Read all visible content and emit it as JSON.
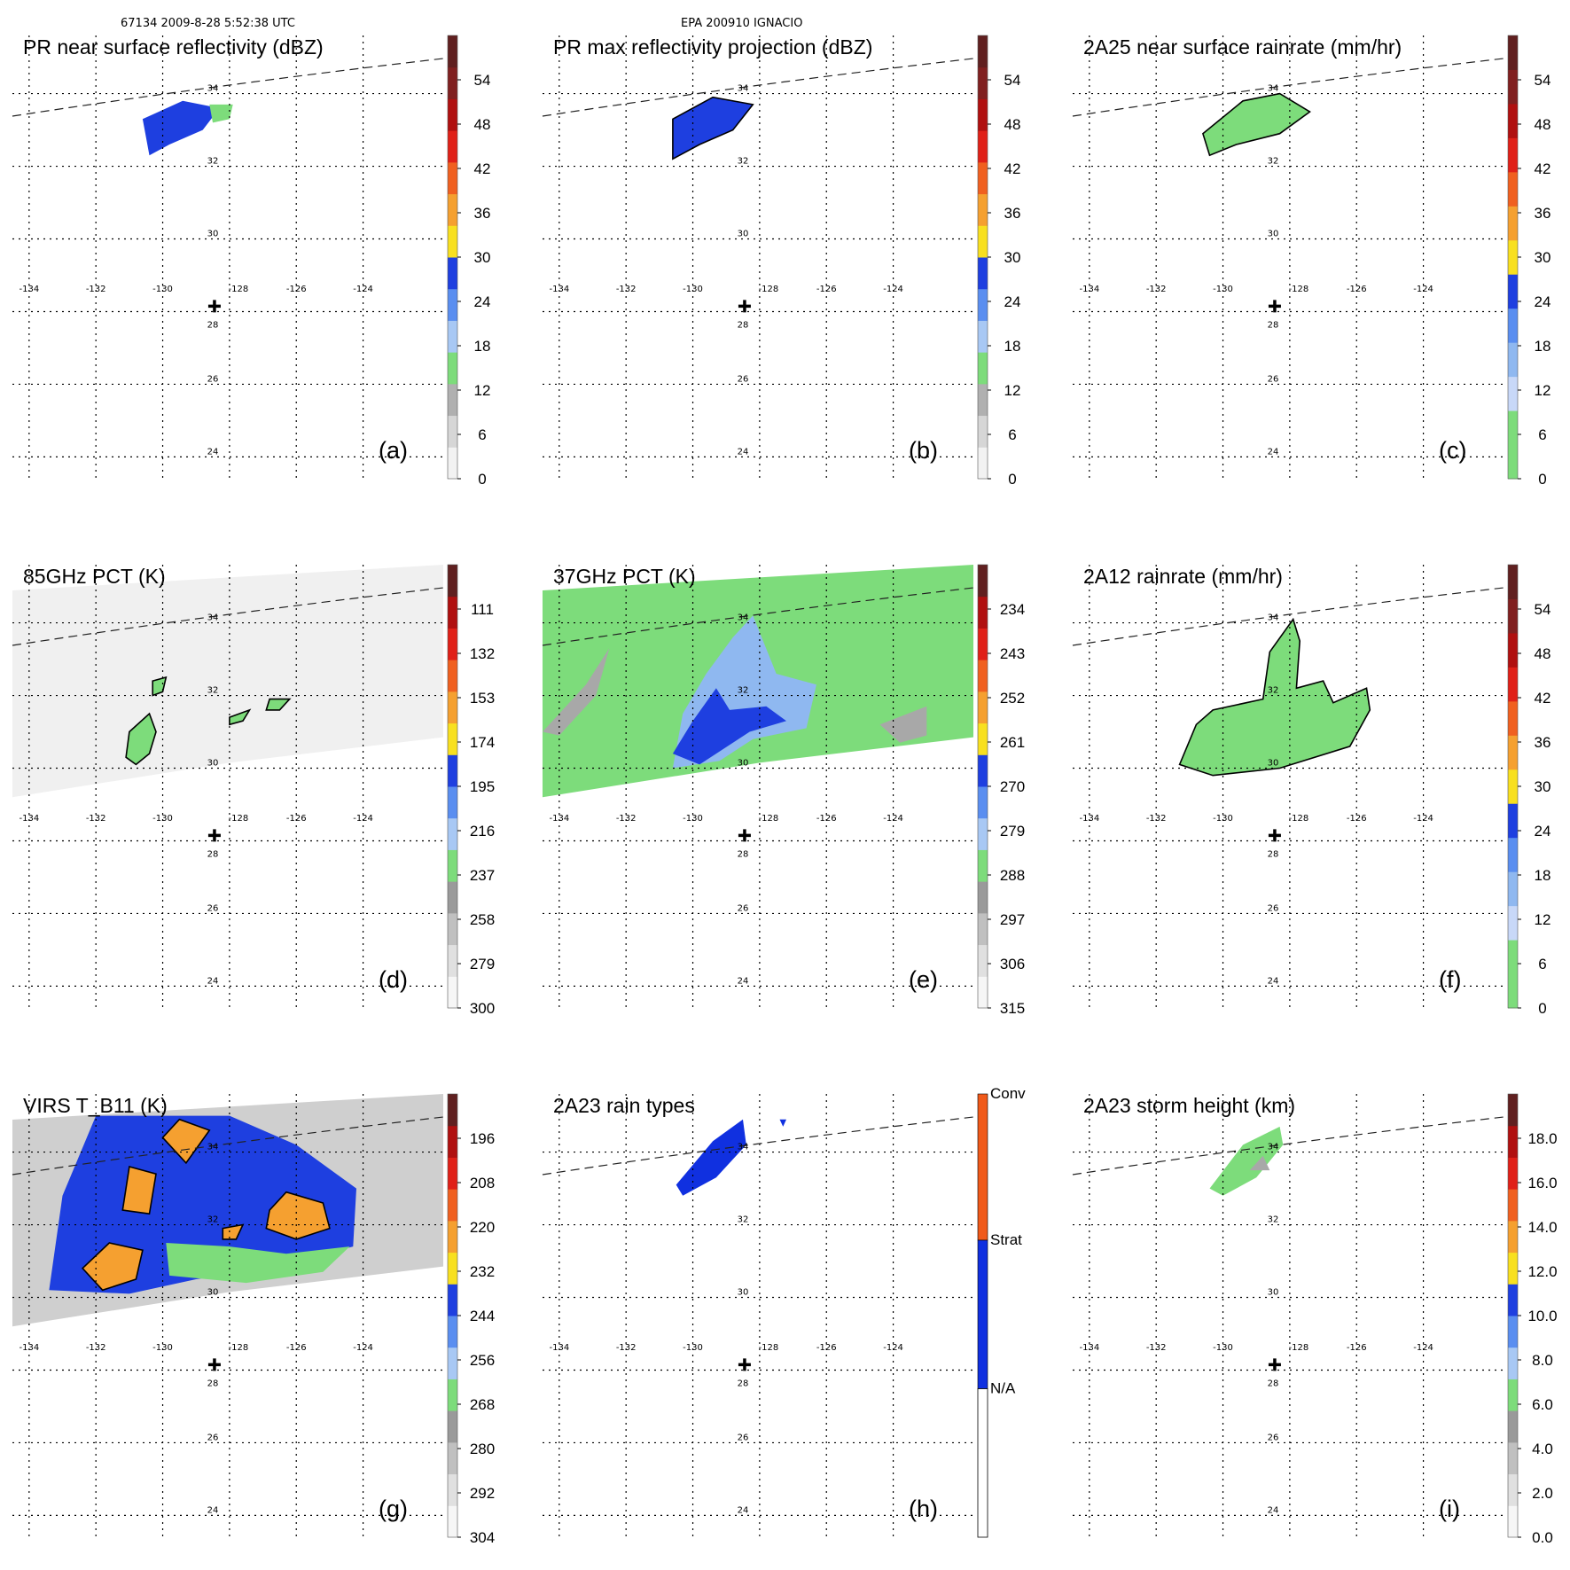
{
  "header": {
    "left": "67134 2009-8-28 5:52:38 UTC",
    "center": "EPA 200910 IGNACIO"
  },
  "map": {
    "lon_ticks": [
      "-134",
      "-132",
      "-130",
      "-128",
      "-126",
      "-124"
    ],
    "lat_ticks": [
      "24",
      "26",
      "28",
      "30",
      "32",
      "34"
    ]
  },
  "colors": {
    "green": "#7ddc7b",
    "blue": "#1e3fe0",
    "lightblue": "#8fb8f0",
    "orange": "#f5a030",
    "yellow": "#f8e020",
    "gray": "#a8a8a8",
    "conv": "#f05a1a",
    "strat": "#1030e0"
  },
  "chart_data": [
    {
      "id": "a",
      "type": "heatmap",
      "title": "PR near surface reflectivity (dBZ)",
      "label": "(a)",
      "colorbar": {
        "ticks": [
          "0",
          "6",
          "12",
          "18",
          "24",
          "30",
          "36",
          "42",
          "48",
          "54"
        ],
        "scheme": "dbz"
      },
      "features": [
        {
          "kind": "blob",
          "color": "blue",
          "points": [
            [
              -130.6,
              33.3
            ],
            [
              -129.4,
              33.8
            ],
            [
              -128.3,
              33.6
            ],
            [
              -128.8,
              33.0
            ],
            [
              -129.8,
              32.6
            ],
            [
              -130.4,
              32.3
            ]
          ]
        },
        {
          "kind": "blob",
          "color": "green",
          "points": [
            [
              -128.6,
              33.7
            ],
            [
              -127.9,
              33.7
            ],
            [
              -128.0,
              33.3
            ],
            [
              -128.5,
              33.2
            ]
          ]
        }
      ]
    },
    {
      "id": "b",
      "type": "heatmap",
      "title": "PR max reflectivity projection (dBZ)",
      "label": "(b)",
      "colorbar": {
        "ticks": [
          "0",
          "6",
          "12",
          "18",
          "24",
          "30",
          "36",
          "42",
          "48",
          "54"
        ],
        "scheme": "dbz"
      },
      "features": [
        {
          "kind": "blob",
          "color": "blue",
          "points": [
            [
              -130.6,
              33.3
            ],
            [
              -129.4,
              33.9
            ],
            [
              -128.2,
              33.7
            ],
            [
              -128.8,
              33.0
            ],
            [
              -129.8,
              32.6
            ],
            [
              -130.6,
              32.2
            ]
          ],
          "outline": true
        }
      ]
    },
    {
      "id": "c",
      "type": "heatmap",
      "title": "2A25 near surface rainrate (mm/hr)",
      "label": "(c)",
      "colorbar": {
        "ticks": [
          "0",
          "6",
          "12",
          "18",
          "24",
          "30",
          "36",
          "42",
          "48",
          "54"
        ],
        "scheme": "rain"
      },
      "features": [
        {
          "kind": "blob",
          "color": "green",
          "points": [
            [
              -130.6,
              32.9
            ],
            [
              -129.4,
              33.8
            ],
            [
              -128.3,
              34.0
            ],
            [
              -127.4,
              33.5
            ],
            [
              -128.3,
              32.9
            ],
            [
              -129.6,
              32.6
            ],
            [
              -130.4,
              32.3
            ]
          ],
          "outline": true
        }
      ]
    },
    {
      "id": "d",
      "type": "heatmap",
      "title": "85GHz PCT (K)",
      "label": "(d)",
      "colorbar": {
        "ticks": [
          "300",
          "279",
          "258",
          "237",
          "216",
          "195",
          "174",
          "153",
          "132",
          "111"
        ],
        "scheme": "pct"
      },
      "swath": {
        "fill": "#f0f0f0"
      },
      "features": [
        {
          "kind": "blob",
          "color": "green",
          "points": [
            [
              -131.0,
              31.0
            ],
            [
              -130.4,
              31.5
            ],
            [
              -130.2,
              31.0
            ],
            [
              -130.4,
              30.4
            ],
            [
              -130.8,
              30.1
            ],
            [
              -131.1,
              30.3
            ]
          ],
          "outline": true
        },
        {
          "kind": "blob",
          "color": "green",
          "points": [
            [
              -130.3,
              32.4
            ],
            [
              -129.9,
              32.5
            ],
            [
              -130.0,
              32.1
            ],
            [
              -130.3,
              32.0
            ]
          ],
          "outline": true
        },
        {
          "kind": "blob",
          "color": "green",
          "points": [
            [
              -128.0,
              31.4
            ],
            [
              -127.4,
              31.6
            ],
            [
              -127.6,
              31.3
            ],
            [
              -128.0,
              31.2
            ]
          ],
          "outline": true
        },
        {
          "kind": "blob",
          "color": "green",
          "points": [
            [
              -126.8,
              31.9
            ],
            [
              -126.2,
              31.9
            ],
            [
              -126.5,
              31.6
            ],
            [
              -126.9,
              31.6
            ]
          ],
          "outline": true
        }
      ]
    },
    {
      "id": "e",
      "type": "heatmap",
      "title": "37GHz PCT (K)",
      "label": "(e)",
      "colorbar": {
        "ticks": [
          "315",
          "306",
          "297",
          "288",
          "279",
          "270",
          "261",
          "252",
          "243",
          "234"
        ],
        "scheme": "pct"
      },
      "swath": {
        "fill": "#7ddc7b"
      },
      "features": [
        {
          "kind": "blob",
          "color": "gray",
          "points": [
            [
              -134.5,
              31.0
            ],
            [
              -133.2,
              32.3
            ],
            [
              -132.5,
              33.3
            ],
            [
              -132.9,
              32.0
            ],
            [
              -134.0,
              30.9
            ]
          ]
        },
        {
          "kind": "blob",
          "color": "gray",
          "points": [
            [
              -124.4,
              31.2
            ],
            [
              -123.0,
              31.7
            ],
            [
              -123.0,
              30.9
            ],
            [
              -123.8,
              30.7
            ]
          ]
        },
        {
          "kind": "blob",
          "color": "lightblue",
          "points": [
            [
              -130.6,
              30.0
            ],
            [
              -130.3,
              31.5
            ],
            [
              -129.6,
              32.6
            ],
            [
              -128.8,
              33.6
            ],
            [
              -128.2,
              34.2
            ],
            [
              -127.5,
              32.6
            ],
            [
              -126.3,
              32.3
            ],
            [
              -126.6,
              31.1
            ],
            [
              -128.2,
              30.8
            ],
            [
              -129.2,
              30.2
            ]
          ]
        },
        {
          "kind": "blob",
          "color": "blue",
          "points": [
            [
              -130.6,
              30.4
            ],
            [
              -130.0,
              31.3
            ],
            [
              -129.3,
              32.2
            ],
            [
              -128.9,
              31.6
            ],
            [
              -127.8,
              31.7
            ],
            [
              -127.2,
              31.3
            ],
            [
              -128.3,
              31.0
            ],
            [
              -129.3,
              30.4
            ],
            [
              -129.8,
              30.1
            ]
          ]
        }
      ]
    },
    {
      "id": "f",
      "type": "heatmap",
      "title": "2A12 rainrate (mm/hr)",
      "label": "(f)",
      "colorbar": {
        "ticks": [
          "0",
          "6",
          "12",
          "18",
          "24",
          "30",
          "36",
          "42",
          "48",
          "54"
        ],
        "scheme": "rain"
      },
      "features": [
        {
          "kind": "blob",
          "color": "green",
          "points": [
            [
              -131.3,
              30.1
            ],
            [
              -130.8,
              31.2
            ],
            [
              -130.3,
              31.6
            ],
            [
              -128.8,
              31.9
            ],
            [
              -128.6,
              33.2
            ],
            [
              -127.9,
              34.1
            ],
            [
              -127.7,
              33.5
            ],
            [
              -127.8,
              32.2
            ],
            [
              -127.0,
              32.4
            ],
            [
              -126.7,
              31.8
            ],
            [
              -125.7,
              32.2
            ],
            [
              -125.6,
              31.6
            ],
            [
              -126.2,
              30.6
            ],
            [
              -128.3,
              30.0
            ],
            [
              -130.3,
              29.8
            ]
          ],
          "outline": true
        }
      ]
    },
    {
      "id": "g",
      "type": "heatmap",
      "title": "VIRS T_B11 (K)",
      "label": "(g)",
      "colorbar": {
        "ticks": [
          "304",
          "292",
          "280",
          "268",
          "256",
          "244",
          "232",
          "220",
          "208",
          "196"
        ],
        "scheme": "virs"
      },
      "swath": {
        "fill": "#cfcfcf"
      },
      "features": [
        {
          "kind": "blob",
          "color": "blue",
          "points": [
            [
              -133.4,
              30.2
            ],
            [
              -133.0,
              32.8
            ],
            [
              -132.0,
              35.0
            ],
            [
              -128.0,
              35.0
            ],
            [
              -126.0,
              34.2
            ],
            [
              -124.2,
              33.0
            ],
            [
              -124.3,
              31.4
            ],
            [
              -126.8,
              30.8
            ],
            [
              -129.0,
              30.5
            ],
            [
              -131.0,
              30.1
            ]
          ]
        },
        {
          "kind": "blob",
          "color": "green",
          "points": [
            [
              -129.9,
              31.5
            ],
            [
              -128.0,
              31.4
            ],
            [
              -126.3,
              31.2
            ],
            [
              -124.4,
              31.4
            ],
            [
              -125.2,
              30.7
            ],
            [
              -127.5,
              30.4
            ],
            [
              -129.8,
              30.6
            ]
          ]
        },
        {
          "kind": "blob",
          "color": "orange",
          "points": [
            [
              -131.8,
              30.2
            ],
            [
              -132.4,
              30.8
            ],
            [
              -131.6,
              31.5
            ],
            [
              -130.6,
              31.3
            ],
            [
              -130.8,
              30.5
            ]
          ],
          "outline": true
        },
        {
          "kind": "blob",
          "color": "orange",
          "points": [
            [
              -131.2,
              32.4
            ],
            [
              -131.0,
              33.6
            ],
            [
              -130.2,
              33.4
            ],
            [
              -130.4,
              32.3
            ]
          ],
          "outline": true
        },
        {
          "kind": "blob",
          "color": "orange",
          "points": [
            [
              -130.0,
              34.4
            ],
            [
              -129.5,
              34.9
            ],
            [
              -128.6,
              34.6
            ],
            [
              -129.3,
              33.7
            ]
          ],
          "outline": true
        },
        {
          "kind": "blob",
          "color": "orange",
          "points": [
            [
              -126.8,
              32.4
            ],
            [
              -126.3,
              32.9
            ],
            [
              -125.2,
              32.6
            ],
            [
              -125.0,
              31.9
            ],
            [
              -126.0,
              31.6
            ],
            [
              -126.9,
              31.9
            ]
          ],
          "outline": true
        },
        {
          "kind": "blob",
          "color": "orange",
          "points": [
            [
              -128.2,
              31.9
            ],
            [
              -127.6,
              32.0
            ],
            [
              -127.8,
              31.6
            ],
            [
              -128.2,
              31.6
            ]
          ],
          "outline": true
        }
      ]
    },
    {
      "id": "h",
      "type": "heatmap",
      "title": "2A23 rain types",
      "label": "(h)",
      "colorbar": {
        "categories": [
          "N/A",
          "Strat",
          "Conv"
        ],
        "scheme": "types"
      },
      "features": [
        {
          "kind": "blob",
          "color": "strat",
          "points": [
            [
              -130.5,
              33.1
            ],
            [
              -129.4,
              34.3
            ],
            [
              -128.5,
              34.9
            ],
            [
              -128.4,
              34.2
            ],
            [
              -129.3,
              33.3
            ],
            [
              -130.3,
              32.8
            ]
          ]
        },
        {
          "kind": "blob",
          "color": "strat",
          "points": [
            [
              -127.4,
              34.9
            ],
            [
              -127.2,
              34.9
            ],
            [
              -127.3,
              34.7
            ]
          ]
        }
      ]
    },
    {
      "id": "i",
      "type": "heatmap",
      "title": "2A23 storm height (km)",
      "label": "(i)",
      "colorbar": {
        "ticks": [
          "0.0",
          "2.0",
          "4.0",
          "6.0",
          "8.0",
          "10.0",
          "12.0",
          "14.0",
          "16.0",
          "18.0"
        ],
        "scheme": "height"
      },
      "features": [
        {
          "kind": "blob",
          "color": "green",
          "points": [
            [
              -130.4,
              33.0
            ],
            [
              -129.4,
              34.2
            ],
            [
              -128.3,
              34.7
            ],
            [
              -128.2,
              34.2
            ],
            [
              -129.0,
              33.3
            ],
            [
              -130.0,
              32.8
            ]
          ]
        },
        {
          "kind": "blob",
          "color": "gray",
          "points": [
            [
              -129.2,
              33.5
            ],
            [
              -128.8,
              33.9
            ],
            [
              -128.6,
              33.5
            ]
          ]
        }
      ]
    }
  ]
}
